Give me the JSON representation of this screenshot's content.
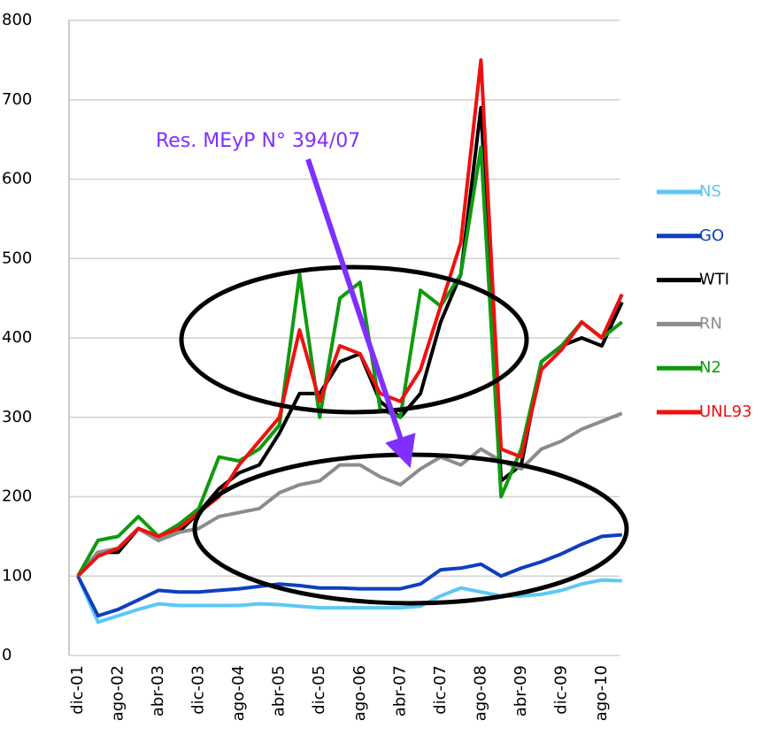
{
  "chart_data": {
    "type": "line",
    "annotation": "Res. MEyP N° 394/07",
    "categories": [
      "dic-01",
      null,
      "ago-02",
      null,
      "abr-03",
      null,
      "dic-03",
      null,
      "ago-04",
      null,
      "abr-05",
      null,
      "dic-05",
      null,
      "ago-06",
      null,
      "abr-07",
      null,
      "dic-07",
      null,
      "ago-08",
      null,
      "abr-09",
      null,
      "dic-09",
      null,
      "ago-10",
      null
    ],
    "series": [
      {
        "name": "NS",
        "color": "#5bc8f5",
        "values": [
          100,
          42,
          50,
          58,
          65,
          63,
          63,
          63,
          63,
          65,
          64,
          62,
          60,
          60,
          60,
          60,
          60,
          62,
          75,
          85,
          80,
          75,
          75,
          77,
          82,
          90,
          95,
          94
        ]
      },
      {
        "name": "GO",
        "color": "#0f3fbf",
        "values": [
          100,
          50,
          58,
          70,
          82,
          80,
          80,
          82,
          84,
          87,
          90,
          88,
          85,
          85,
          84,
          84,
          84,
          90,
          108,
          110,
          115,
          100,
          110,
          118,
          128,
          140,
          150,
          152
        ]
      },
      {
        "name": "WTI",
        "color": "#000000",
        "values": [
          100,
          130,
          130,
          160,
          145,
          155,
          180,
          210,
          230,
          240,
          280,
          330,
          330,
          370,
          380,
          320,
          300,
          330,
          420,
          480,
          690,
          220,
          240,
          370,
          390,
          400,
          390,
          445
        ]
      },
      {
        "name": "RN",
        "color": "#8c8c8c",
        "values": [
          100,
          130,
          135,
          160,
          145,
          155,
          160,
          175,
          180,
          185,
          205,
          215,
          220,
          240,
          240,
          225,
          215,
          235,
          250,
          240,
          260,
          245,
          235,
          260,
          270,
          285,
          295,
          305
        ]
      },
      {
        "name": "N2",
        "color": "#109a10",
        "values": [
          100,
          145,
          150,
          175,
          150,
          165,
          185,
          250,
          245,
          260,
          290,
          480,
          300,
          450,
          470,
          310,
          300,
          460,
          440,
          480,
          640,
          200,
          260,
          370,
          390,
          420,
          400,
          420
        ]
      },
      {
        "name": "UNL93",
        "color": "#f01010",
        "values": [
          100,
          125,
          135,
          160,
          150,
          160,
          180,
          200,
          240,
          270,
          300,
          410,
          320,
          390,
          380,
          330,
          320,
          360,
          440,
          520,
          750,
          260,
          250,
          360,
          385,
          420,
          400,
          455
        ]
      }
    ],
    "ylim": [
      0,
      800
    ],
    "yticks": [
      0,
      100,
      200,
      300,
      400,
      500,
      600,
      700,
      800
    ],
    "grid": true
  }
}
